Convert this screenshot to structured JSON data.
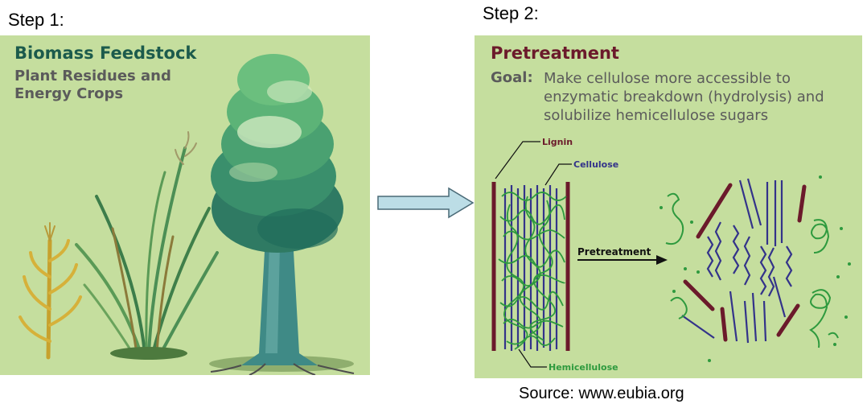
{
  "steps": {
    "step1": "Step 1:",
    "step2": "Step 2:"
  },
  "feedstock": {
    "title": "Biomass Feedstock",
    "subtitle": "Plant Residues and Energy Crops"
  },
  "pretreatment": {
    "title": "Pretreatment",
    "goal_label": "Goal:",
    "goal_text": "Make cellulose more accessible to enzymatic breakdown (hydrolysis) and solubilize hemicellulose sugars",
    "labels": {
      "lignin": "Lignin",
      "cellulose": "Cellulose",
      "hemicellulose": "Hemicellulose",
      "arrow": "Pretreatment"
    }
  },
  "source": "Source: www.eubia.org",
  "colors": {
    "panel_bg": "#c5de9e",
    "lignin": "#6b1a2b",
    "cellulose": "#33338a",
    "hemicellulose": "#2e9a3e",
    "arrow_fill": "#bcdde6"
  }
}
